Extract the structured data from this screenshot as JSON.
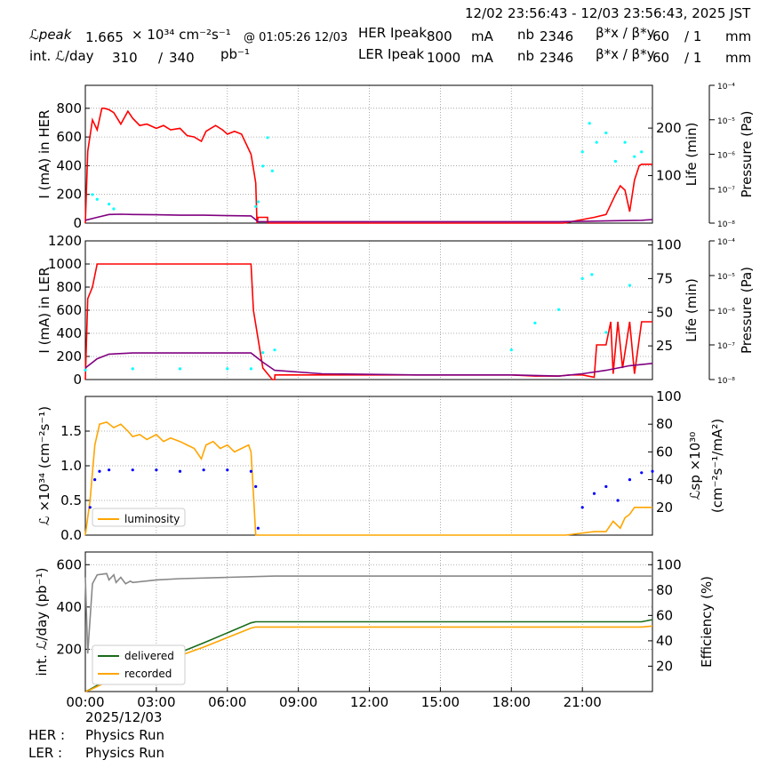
{
  "header": {
    "time_range": "12/02 23:56:43 - 12/03 23:56:43, 2025 JST",
    "lpeak_label": "ℒpeak",
    "lpeak_value": "1.665",
    "lpeak_unit": "× 10³⁴ cm⁻²s⁻¹",
    "lpeak_time": "@ 01:05:26 12/03",
    "int_label": "int. ℒ/day",
    "int_recorded": "310",
    "int_slash": "/",
    "int_delivered": "340",
    "int_unit": "pb⁻¹",
    "her_label": "HER Ipeak",
    "her_current": "800",
    "her_unit": "mA",
    "her_nb_label": "nb",
    "her_nb": "2346",
    "her_beta_label": "β*x / β*y",
    "her_beta_x": "60",
    "her_beta_y": "/ 1",
    "her_beta_unit": "mm",
    "ler_label": "LER Ipeak",
    "ler_current": "1000",
    "ler_unit": "mA",
    "ler_nb_label": "nb",
    "ler_nb": "2346",
    "ler_beta_label": "β*x / β*y",
    "ler_beta_x": "60",
    "ler_beta_y": "/ 1",
    "ler_beta_unit": "mm"
  },
  "footer": {
    "date": "2025/12/03",
    "her_label": "HER :",
    "her_status": "Physics Run",
    "ler_label": "LER :",
    "ler_status": "Physics Run"
  },
  "colors": {
    "current": "#ff0000",
    "life": "#00ffff",
    "pressure": "#800080",
    "lum": "#ffa500",
    "lsp": "#0000ff",
    "delivered": "#1a6b1a",
    "recorded": "#ffa500",
    "efficiency": "#888888"
  },
  "chart_data": [
    {
      "type": "line",
      "ylabel": "I (mA) in HER",
      "ylabel_right": "Life (min)",
      "ylabel_pressure": "Pressure (Pa)",
      "ylim": [
        0,
        960
      ],
      "yticks": [
        "0",
        "200",
        "400",
        "600",
        "800"
      ],
      "yticks_right": [
        "100",
        "200"
      ],
      "ylim_right": [
        0,
        290
      ],
      "pressure_ticks": [
        "10⁻⁸",
        "10⁻⁷",
        "10⁻⁶",
        "10⁻⁵",
        "10⁻⁴"
      ],
      "grid": true,
      "series": [
        {
          "key": "current",
          "x": [
            0,
            0.1,
            0.3,
            0.5,
            0.7,
            0.8,
            1,
            1.2,
            1.5,
            1.8,
            2,
            2.3,
            2.6,
            3,
            3.3,
            3.6,
            4,
            4.3,
            4.6,
            4.9,
            5.1,
            5.5,
            5.8,
            6,
            6.3,
            6.6,
            7,
            7.1,
            7.2,
            7.25,
            7.3,
            7.5,
            7.7,
            7.71,
            20,
            20.2,
            21.5,
            22,
            22.4,
            22.6,
            22.8,
            23,
            23.2,
            23.4,
            23.5,
            23.96
          ],
          "y": [
            0,
            500,
            720,
            650,
            800,
            800,
            790,
            770,
            690,
            780,
            730,
            680,
            690,
            660,
            680,
            650,
            660,
            610,
            600,
            570,
            640,
            680,
            650,
            620,
            640,
            620,
            480,
            380,
            280,
            0,
            40,
            40,
            40,
            0,
            0,
            0,
            40,
            60,
            200,
            260,
            230,
            80,
            300,
            400,
            410,
            410
          ]
        },
        {
          "key": "pressure",
          "x": [
            0,
            0.5,
            1,
            1.5,
            2,
            3,
            4,
            5,
            6,
            7,
            7.3,
            20,
            23.5,
            23.96
          ],
          "y": [
            20,
            40,
            60,
            62,
            60,
            58,
            55,
            55,
            52,
            50,
            10,
            10,
            20,
            25
          ]
        },
        {
          "key": "life",
          "x": [
            0.3,
            0.5,
            1,
            1.2,
            7.2,
            7.3,
            7.5,
            7.7,
            7.9,
            21,
            21.3,
            21.6,
            22,
            22.4,
            22.8,
            23.2,
            23.5
          ],
          "y": [
            60,
            50,
            40,
            30,
            35,
            45,
            120,
            180,
            110,
            150,
            210,
            170,
            190,
            130,
            170,
            140,
            150
          ]
        }
      ]
    },
    {
      "type": "line",
      "ylabel": "I (mA) in LER",
      "ylabel_right": "Life (min)",
      "ylabel_pressure": "Pressure (Pa)",
      "ylim": [
        0,
        1200
      ],
      "yticks": [
        "0",
        "200",
        "400",
        "600",
        "800",
        "1000",
        "1200"
      ],
      "yticks_right": [
        "25",
        "50",
        "75",
        "100"
      ],
      "ylim_right": [
        0,
        103
      ],
      "pressure_ticks": [
        "10⁻⁸",
        "10⁻⁷",
        "10⁻⁶",
        "10⁻⁵",
        "10⁻⁴"
      ],
      "grid": true,
      "series": [
        {
          "key": "current",
          "x": [
            0,
            0.1,
            0.3,
            0.5,
            0.7,
            1,
            7,
            7.1,
            7.5,
            7.9,
            8,
            8.01,
            18,
            19,
            20,
            20.5,
            21,
            21.5,
            21.6,
            22,
            22.2,
            22.3,
            22.5,
            22.7,
            23,
            23.2,
            23.5,
            23.96
          ],
          "y": [
            0,
            700,
            800,
            1000,
            1000,
            1000,
            1000,
            600,
            100,
            0,
            0,
            40,
            40,
            30,
            30,
            40,
            40,
            20,
            300,
            300,
            500,
            50,
            500,
            100,
            500,
            50,
            500,
            500
          ]
        },
        {
          "key": "pressure",
          "x": [
            0,
            0.5,
            1,
            2,
            4,
            6,
            7,
            7.5,
            8,
            10,
            14,
            18,
            20,
            21,
            22,
            23,
            23.96
          ],
          "y": [
            100,
            180,
            220,
            230,
            230,
            230,
            230,
            150,
            80,
            50,
            40,
            40,
            30,
            50,
            80,
            120,
            140
          ]
        },
        {
          "key": "life",
          "x": [
            0,
            2,
            4,
            6,
            7,
            7.5,
            8,
            18,
            19,
            20,
            21,
            21.4,
            22,
            23
          ],
          "y": [
            7,
            8,
            8,
            8,
            8,
            20,
            22,
            22,
            42,
            52,
            75,
            78,
            35,
            70
          ]
        }
      ]
    },
    {
      "type": "line",
      "ylabel": "ℒ ×10³⁴ (cm⁻²s⁻¹)",
      "ylabel_right": "ℒsp ×10³⁰",
      "ylabel_right2": "(cm⁻²s⁻¹/mA²)",
      "ylim": [
        0,
        2.0
      ],
      "yticks": [
        "0.0",
        "0.5",
        "1.0",
        "1.5"
      ],
      "yticks_right": [
        "20",
        "40",
        "60",
        "80",
        "100"
      ],
      "ylim_right": [
        0,
        100
      ],
      "legend": [
        "luminosity"
      ],
      "grid": true,
      "series": [
        {
          "key": "lum",
          "name": "luminosity",
          "x": [
            0,
            0.2,
            0.4,
            0.6,
            0.9,
            1.2,
            1.5,
            1.8,
            2,
            2.3,
            2.6,
            3,
            3.3,
            3.6,
            4,
            4.3,
            4.6,
            4.9,
            5.1,
            5.4,
            5.7,
            6,
            6.3,
            6.6,
            6.9,
            7,
            7.1,
            7.2,
            20,
            20.3,
            21.5,
            22,
            22.3,
            22.6,
            22.8,
            23,
            23.2,
            23.5,
            23.96
          ],
          "y": [
            0,
            0.5,
            1.3,
            1.6,
            1.63,
            1.55,
            1.6,
            1.5,
            1.42,
            1.45,
            1.38,
            1.45,
            1.35,
            1.4,
            1.35,
            1.3,
            1.25,
            1.1,
            1.3,
            1.35,
            1.25,
            1.3,
            1.2,
            1.25,
            1.3,
            1.2,
            0.6,
            0,
            0,
            0,
            0.05,
            0.05,
            0.2,
            0.1,
            0.25,
            0.3,
            0.4,
            0.4,
            0.4
          ]
        },
        {
          "key": "lsp",
          "x": [
            0.2,
            0.4,
            0.6,
            1,
            2,
            3,
            4,
            5,
            6,
            7,
            7.2,
            7.3,
            21,
            21.5,
            22,
            22.5,
            23,
            23.5,
            23.96
          ],
          "y": [
            20,
            40,
            46,
            47,
            47,
            47,
            46,
            47,
            47,
            46,
            35,
            5,
            20,
            30,
            35,
            25,
            40,
            45,
            46
          ]
        }
      ]
    },
    {
      "type": "line",
      "ylabel": "int. ℒ/day (pb⁻¹)",
      "ylabel_right": "Efficiency (%)",
      "ylim": [
        0,
        660
      ],
      "yticks": [
        "200",
        "400",
        "600"
      ],
      "yticks_right": [
        "20",
        "40",
        "60",
        "80",
        "100"
      ],
      "ylim_right": [
        0,
        110
      ],
      "legend": [
        "delivered",
        "recorded"
      ],
      "xticks": [
        "00:00",
        "03:00",
        "06:00",
        "09:00",
        "12:00",
        "15:00",
        "18:00",
        "21:00"
      ],
      "xlim": [
        0,
        23.96
      ],
      "grid": true,
      "series": [
        {
          "key": "delivered",
          "name": "delivered",
          "x": [
            0,
            0.2,
            1,
            3,
            5,
            7,
            7.2,
            23.5,
            23.96
          ],
          "y": [
            0,
            10,
            60,
            140,
            230,
            325,
            330,
            330,
            340
          ]
        },
        {
          "key": "recorded",
          "name": "recorded",
          "x": [
            0,
            0.2,
            1,
            3,
            5,
            7,
            7.2,
            23.5,
            23.96
          ],
          "y": [
            0,
            8,
            50,
            130,
            210,
            300,
            305,
            305,
            310
          ]
        },
        {
          "key": "efficiency",
          "x": [
            0,
            0.1,
            0.3,
            0.5,
            0.9,
            1,
            1.2,
            1.3,
            1.5,
            1.7,
            1.9,
            2,
            3,
            4,
            6,
            8,
            23.96
          ],
          "y": [
            90,
            30,
            85,
            92,
            93,
            88,
            92,
            86,
            90,
            85,
            87,
            86,
            88,
            89,
            90,
            91,
            91
          ]
        }
      ]
    }
  ]
}
